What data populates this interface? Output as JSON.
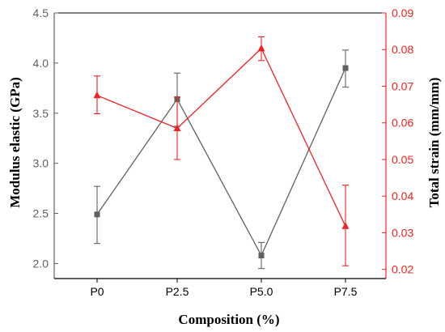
{
  "chart_data": {
    "type": "line",
    "title": "",
    "xlabel": "Composition (%)",
    "ylabel_left": "Modulus elastic (GPa)",
    "ylabel_right": "Total strain (mm/mm)",
    "categories": [
      "P0",
      "P2.5",
      "P5.0",
      "P7.5"
    ],
    "y_left": {
      "lim": [
        1.85,
        4.5
      ],
      "ticks": [
        "2.0",
        "2.5",
        "3.0",
        "3.5",
        "4.0",
        "4.5"
      ]
    },
    "y_right": {
      "lim": [
        0.0175,
        0.09
      ],
      "ticks": [
        "0.02",
        "0.03",
        "0.04",
        "0.05",
        "0.06",
        "0.07",
        "0.08",
        "0.09"
      ]
    },
    "series": [
      {
        "axis": "left",
        "color": "#606060",
        "marker": "square",
        "values": [
          2.49,
          3.64,
          2.08,
          3.95
        ],
        "err_low": [
          2.2,
          3.37,
          1.95,
          3.76
        ],
        "err_high": [
          2.77,
          3.9,
          2.21,
          4.13
        ]
      },
      {
        "axis": "right",
        "color": "#ee2222",
        "marker": "triangle",
        "values": [
          0.0675,
          0.0585,
          0.0803,
          0.0318
        ],
        "err_low": [
          0.0625,
          0.05,
          0.077,
          0.021
        ],
        "err_high": [
          0.0728,
          0.067,
          0.0835,
          0.043
        ]
      }
    ],
    "colors": {
      "left_axis": "#606060",
      "right_axis": "#ee2222"
    }
  }
}
